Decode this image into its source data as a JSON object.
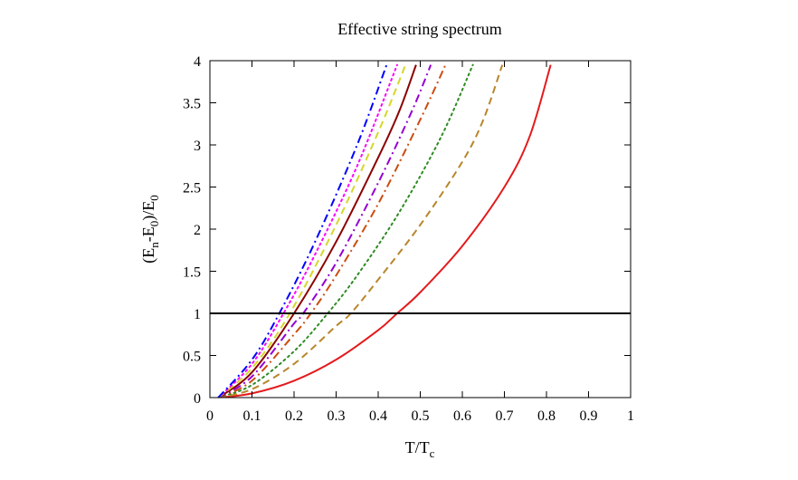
{
  "chart_data": {
    "type": "line",
    "title": "Effective string spectrum",
    "xlabel": {
      "base": "T/T",
      "sub": "c"
    },
    "ylabel": {
      "p1": "(E",
      "s1": "n",
      "p2": "-E",
      "s2": "0",
      "p3": ")/E",
      "s3": "0"
    },
    "xlim": [
      0,
      1
    ],
    "ylim": [
      0,
      4
    ],
    "xticks": [
      0,
      0.1,
      0.2,
      0.3,
      0.4,
      0.5,
      0.6,
      0.7,
      0.8,
      0.9,
      1
    ],
    "xtick_labels": [
      "0",
      "0.1",
      "0.2",
      "0.3",
      "0.4",
      "0.5",
      "0.6",
      "0.7",
      "0.8",
      "0.9",
      "1"
    ],
    "yticks": [
      0,
      0.5,
      1,
      1.5,
      2,
      2.5,
      3,
      3.5,
      4
    ],
    "ytick_labels": [
      "0",
      "0.5",
      "1",
      "1.5",
      "2",
      "2.5",
      "3",
      "3.5",
      "4"
    ],
    "grid": false,
    "legend": "none",
    "reference_line": {
      "y": 1,
      "color": "#000000"
    },
    "series": [
      {
        "n": 1,
        "color": "#e41a1c",
        "dash": "solid",
        "x": [
          0.02,
          0.1,
          0.2,
          0.3,
          0.4,
          0.445,
          0.5,
          0.6,
          0.7,
          0.76,
          0.81
        ],
        "y": [
          0.0,
          0.05,
          0.2,
          0.45,
          0.8,
          1.0,
          1.25,
          1.8,
          2.5,
          3.1,
          3.95
        ]
      },
      {
        "n": 2,
        "color": "#b8862b",
        "dash": "dashed",
        "x": [
          0.02,
          0.1,
          0.2,
          0.3,
          0.335,
          0.4,
          0.5,
          0.6,
          0.65,
          0.695
        ],
        "y": [
          0.0,
          0.1,
          0.4,
          0.85,
          1.0,
          1.4,
          2.05,
          2.8,
          3.3,
          3.95
        ]
      },
      {
        "n": 3,
        "color": "#2e8b22",
        "dash": "dotted",
        "x": [
          0.02,
          0.1,
          0.2,
          0.28,
          0.35,
          0.45,
          0.55,
          0.625
        ],
        "y": [
          0.0,
          0.15,
          0.55,
          1.0,
          1.45,
          2.2,
          3.1,
          3.95
        ]
      },
      {
        "n": 4,
        "color": "#cc4c10",
        "dash": "dashdot",
        "x": [
          0.02,
          0.1,
          0.2,
          0.24,
          0.3,
          0.4,
          0.5,
          0.56
        ],
        "y": [
          0.0,
          0.2,
          0.75,
          1.0,
          1.45,
          2.3,
          3.3,
          3.95
        ]
      },
      {
        "n": 5,
        "color": "#9400d3",
        "dash": "dashdot",
        "x": [
          0.02,
          0.1,
          0.2,
          0.222,
          0.3,
          0.4,
          0.48,
          0.525
        ],
        "y": [
          0.0,
          0.25,
          0.88,
          1.0,
          1.6,
          2.55,
          3.4,
          3.95
        ]
      },
      {
        "n": 6,
        "color": "#8b0000",
        "dash": "solid",
        "x": [
          0.02,
          0.1,
          0.2,
          0.3,
          0.4,
          0.45,
          0.49
        ],
        "y": [
          0.0,
          0.3,
          1.0,
          1.85,
          2.85,
          3.4,
          3.95
        ]
      },
      {
        "n": 7,
        "color": "#d6d62a",
        "dash": "dashed",
        "x": [
          0.02,
          0.1,
          0.19,
          0.3,
          0.4,
          0.465
        ],
        "y": [
          0.0,
          0.35,
          1.0,
          2.05,
          3.15,
          3.95
        ]
      },
      {
        "n": 8,
        "color": "#ff00ff",
        "dash": "dotted",
        "x": [
          0.02,
          0.1,
          0.175,
          0.25,
          0.35,
          0.445
        ],
        "y": [
          0.0,
          0.4,
          1.0,
          1.7,
          2.75,
          3.95
        ]
      },
      {
        "n": 9,
        "color": "#0000ff",
        "dash": "dashdot",
        "x": [
          0.02,
          0.1,
          0.165,
          0.25,
          0.35,
          0.42
        ],
        "y": [
          0.0,
          0.45,
          1.0,
          1.85,
          3.0,
          3.95
        ]
      }
    ]
  }
}
